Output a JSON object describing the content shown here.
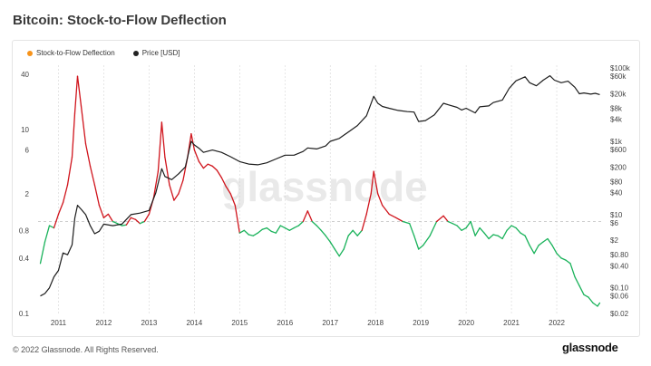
{
  "header": {
    "title": "Bitcoin: Stock-to-Flow Deflection"
  },
  "footer": {
    "copyright": "© 2022 Glassnode. All Rights Reserved.",
    "brand": "glassnode"
  },
  "watermark": "glassnode",
  "legend": [
    {
      "label": "Stock-to-Flow Deflection",
      "color": "#f7931a"
    },
    {
      "label": "Price [USD]",
      "color": "#222222"
    }
  ],
  "chart_data": {
    "type": "line",
    "title": "Bitcoin: Stock-to-Flow Deflection",
    "x_ticks": [
      "2011",
      "2012",
      "2013",
      "2014",
      "2015",
      "2016",
      "2017",
      "2018",
      "2019",
      "2020",
      "2021",
      "2022"
    ],
    "y_left": {
      "scale": "log",
      "ticks": [
        "40",
        "10",
        "6",
        "2",
        "0.8",
        "0.4",
        "0.1"
      ],
      "tick_values": [
        40,
        10,
        6,
        2,
        0.8,
        0.4,
        0.1
      ],
      "range": [
        0.1,
        50
      ]
    },
    "y_right": {
      "scale": "log",
      "ticks": [
        "$100k",
        "$60k",
        "$20k",
        "$8k",
        "$4k",
        "$1k",
        "$600",
        "$200",
        "$80",
        "$40",
        "$10",
        "$6",
        "$2",
        "$0.80",
        "$0.40",
        "$0.10",
        "$0.06",
        "$0.02"
      ],
      "tick_values": [
        100000,
        60000,
        20000,
        8000,
        4000,
        1000,
        600,
        200,
        80,
        40,
        10,
        6,
        2,
        0.8,
        0.4,
        0.1,
        0.06,
        0.02
      ],
      "range": [
        0.02,
        120000
      ]
    },
    "reference_line": {
      "axis": "left",
      "value": 1
    },
    "colors": {
      "above": "#d0141c",
      "below": "#19b25a",
      "price": "#1c1c1c"
    },
    "series": [
      {
        "name": "Stock-to-Flow Deflection",
        "axis": "left",
        "points": [
          [
            2010.6,
            0.35
          ],
          [
            2010.7,
            0.6
          ],
          [
            2010.8,
            0.9
          ],
          [
            2010.9,
            0.85
          ],
          [
            2011.0,
            1.2
          ],
          [
            2011.1,
            1.6
          ],
          [
            2011.2,
            2.5
          ],
          [
            2011.3,
            5
          ],
          [
            2011.36,
            15
          ],
          [
            2011.42,
            38
          ],
          [
            2011.5,
            18
          ],
          [
            2011.6,
            7
          ],
          [
            2011.7,
            4
          ],
          [
            2011.8,
            2.5
          ],
          [
            2011.9,
            1.5
          ],
          [
            2012.0,
            1.1
          ],
          [
            2012.1,
            1.2
          ],
          [
            2012.2,
            1.0
          ],
          [
            2012.3,
            0.95
          ],
          [
            2012.4,
            0.9
          ],
          [
            2012.5,
            0.92
          ],
          [
            2012.6,
            1.1
          ],
          [
            2012.7,
            1.05
          ],
          [
            2012.8,
            0.95
          ],
          [
            2012.9,
            1.0
          ],
          [
            2013.0,
            1.2
          ],
          [
            2013.1,
            1.8
          ],
          [
            2013.2,
            3.5
          ],
          [
            2013.28,
            12
          ],
          [
            2013.35,
            5
          ],
          [
            2013.45,
            2.5
          ],
          [
            2013.55,
            1.7
          ],
          [
            2013.65,
            2.0
          ],
          [
            2013.75,
            2.8
          ],
          [
            2013.85,
            5
          ],
          [
            2013.93,
            9
          ],
          [
            2014.0,
            6
          ],
          [
            2014.1,
            4.5
          ],
          [
            2014.2,
            3.8
          ],
          [
            2014.3,
            4.2
          ],
          [
            2014.4,
            4.0
          ],
          [
            2014.5,
            3.6
          ],
          [
            2014.6,
            3.0
          ],
          [
            2014.7,
            2.4
          ],
          [
            2014.8,
            2.0
          ],
          [
            2014.9,
            1.5
          ],
          [
            2015.0,
            0.75
          ],
          [
            2015.1,
            0.8
          ],
          [
            2015.2,
            0.72
          ],
          [
            2015.3,
            0.7
          ],
          [
            2015.4,
            0.75
          ],
          [
            2015.5,
            0.82
          ],
          [
            2015.6,
            0.85
          ],
          [
            2015.7,
            0.78
          ],
          [
            2015.8,
            0.75
          ],
          [
            2015.9,
            0.9
          ],
          [
            2016.0,
            0.85
          ],
          [
            2016.1,
            0.8
          ],
          [
            2016.2,
            0.85
          ],
          [
            2016.3,
            0.9
          ],
          [
            2016.4,
            1.0
          ],
          [
            2016.5,
            1.3
          ],
          [
            2016.6,
            1.0
          ],
          [
            2016.7,
            0.9
          ],
          [
            2016.8,
            0.8
          ],
          [
            2016.9,
            0.7
          ],
          [
            2017.0,
            0.6
          ],
          [
            2017.1,
            0.5
          ],
          [
            2017.2,
            0.42
          ],
          [
            2017.3,
            0.5
          ],
          [
            2017.4,
            0.7
          ],
          [
            2017.5,
            0.8
          ],
          [
            2017.6,
            0.7
          ],
          [
            2017.7,
            0.8
          ],
          [
            2017.8,
            1.2
          ],
          [
            2017.9,
            2.0
          ],
          [
            2017.96,
            3.5
          ],
          [
            2018.05,
            2.0
          ],
          [
            2018.15,
            1.5
          ],
          [
            2018.3,
            1.2
          ],
          [
            2018.45,
            1.1
          ],
          [
            2018.6,
            1.0
          ],
          [
            2018.75,
            0.95
          ],
          [
            2018.85,
            0.7
          ],
          [
            2018.95,
            0.5
          ],
          [
            2019.05,
            0.55
          ],
          [
            2019.2,
            0.7
          ],
          [
            2019.35,
            1.0
          ],
          [
            2019.5,
            1.15
          ],
          [
            2019.6,
            1.0
          ],
          [
            2019.7,
            0.95
          ],
          [
            2019.8,
            0.9
          ],
          [
            2019.9,
            0.8
          ],
          [
            2020.0,
            0.85
          ],
          [
            2020.1,
            1.0
          ],
          [
            2020.2,
            0.7
          ],
          [
            2020.3,
            0.85
          ],
          [
            2020.4,
            0.75
          ],
          [
            2020.5,
            0.65
          ],
          [
            2020.6,
            0.72
          ],
          [
            2020.7,
            0.7
          ],
          [
            2020.8,
            0.65
          ],
          [
            2020.9,
            0.8
          ],
          [
            2021.0,
            0.9
          ],
          [
            2021.1,
            0.85
          ],
          [
            2021.2,
            0.75
          ],
          [
            2021.3,
            0.7
          ],
          [
            2021.4,
            0.55
          ],
          [
            2021.5,
            0.45
          ],
          [
            2021.6,
            0.55
          ],
          [
            2021.7,
            0.6
          ],
          [
            2021.8,
            0.65
          ],
          [
            2021.9,
            0.55
          ],
          [
            2022.0,
            0.45
          ],
          [
            2022.1,
            0.4
          ],
          [
            2022.2,
            0.38
          ],
          [
            2022.3,
            0.35
          ],
          [
            2022.4,
            0.25
          ],
          [
            2022.5,
            0.2
          ],
          [
            2022.6,
            0.16
          ],
          [
            2022.7,
            0.15
          ],
          [
            2022.8,
            0.13
          ],
          [
            2022.9,
            0.12
          ],
          [
            2022.95,
            0.13
          ]
        ]
      },
      {
        "name": "Price [USD]",
        "axis": "right",
        "points": [
          [
            2010.6,
            0.06
          ],
          [
            2010.7,
            0.07
          ],
          [
            2010.8,
            0.1
          ],
          [
            2010.9,
            0.2
          ],
          [
            2011.0,
            0.3
          ],
          [
            2011.1,
            0.9
          ],
          [
            2011.2,
            0.8
          ],
          [
            2011.3,
            1.5
          ],
          [
            2011.36,
            8
          ],
          [
            2011.42,
            18
          ],
          [
            2011.5,
            14
          ],
          [
            2011.6,
            10
          ],
          [
            2011.7,
            5
          ],
          [
            2011.8,
            3
          ],
          [
            2011.9,
            3.5
          ],
          [
            2012.0,
            5.5
          ],
          [
            2012.2,
            5
          ],
          [
            2012.4,
            5.5
          ],
          [
            2012.6,
            10
          ],
          [
            2012.8,
            11
          ],
          [
            2013.0,
            13
          ],
          [
            2013.15,
            40
          ],
          [
            2013.28,
            180
          ],
          [
            2013.35,
            110
          ],
          [
            2013.5,
            90
          ],
          [
            2013.65,
            130
          ],
          [
            2013.8,
            200
          ],
          [
            2013.93,
            1000
          ],
          [
            2014.0,
            800
          ],
          [
            2014.1,
            650
          ],
          [
            2014.2,
            500
          ],
          [
            2014.4,
            580
          ],
          [
            2014.6,
            500
          ],
          [
            2014.8,
            380
          ],
          [
            2015.0,
            280
          ],
          [
            2015.2,
            240
          ],
          [
            2015.4,
            230
          ],
          [
            2015.6,
            260
          ],
          [
            2015.8,
            330
          ],
          [
            2016.0,
            420
          ],
          [
            2016.2,
            420
          ],
          [
            2016.4,
            530
          ],
          [
            2016.5,
            660
          ],
          [
            2016.7,
            620
          ],
          [
            2016.9,
            750
          ],
          [
            2017.0,
            1000
          ],
          [
            2017.2,
            1200
          ],
          [
            2017.4,
            1800
          ],
          [
            2017.6,
            2700
          ],
          [
            2017.8,
            5000
          ],
          [
            2017.96,
            17000
          ],
          [
            2018.05,
            11000
          ],
          [
            2018.15,
            9000
          ],
          [
            2018.3,
            8000
          ],
          [
            2018.5,
            7000
          ],
          [
            2018.7,
            6500
          ],
          [
            2018.85,
            6300
          ],
          [
            2018.95,
            3500
          ],
          [
            2019.1,
            3700
          ],
          [
            2019.3,
            5300
          ],
          [
            2019.5,
            11000
          ],
          [
            2019.6,
            10000
          ],
          [
            2019.8,
            8500
          ],
          [
            2019.9,
            7200
          ],
          [
            2020.0,
            8000
          ],
          [
            2020.2,
            6000
          ],
          [
            2020.3,
            8800
          ],
          [
            2020.5,
            9300
          ],
          [
            2020.6,
            11500
          ],
          [
            2020.8,
            13500
          ],
          [
            2020.95,
            28000
          ],
          [
            2021.1,
            45000
          ],
          [
            2021.3,
            58000
          ],
          [
            2021.4,
            40000
          ],
          [
            2021.55,
            33000
          ],
          [
            2021.7,
            47000
          ],
          [
            2021.85,
            62000
          ],
          [
            2021.95,
            47000
          ],
          [
            2022.1,
            40000
          ],
          [
            2022.25,
            44000
          ],
          [
            2022.4,
            30000
          ],
          [
            2022.5,
            20000
          ],
          [
            2022.6,
            21000
          ],
          [
            2022.75,
            19500
          ],
          [
            2022.85,
            20500
          ],
          [
            2022.95,
            19000
          ]
        ]
      }
    ]
  }
}
